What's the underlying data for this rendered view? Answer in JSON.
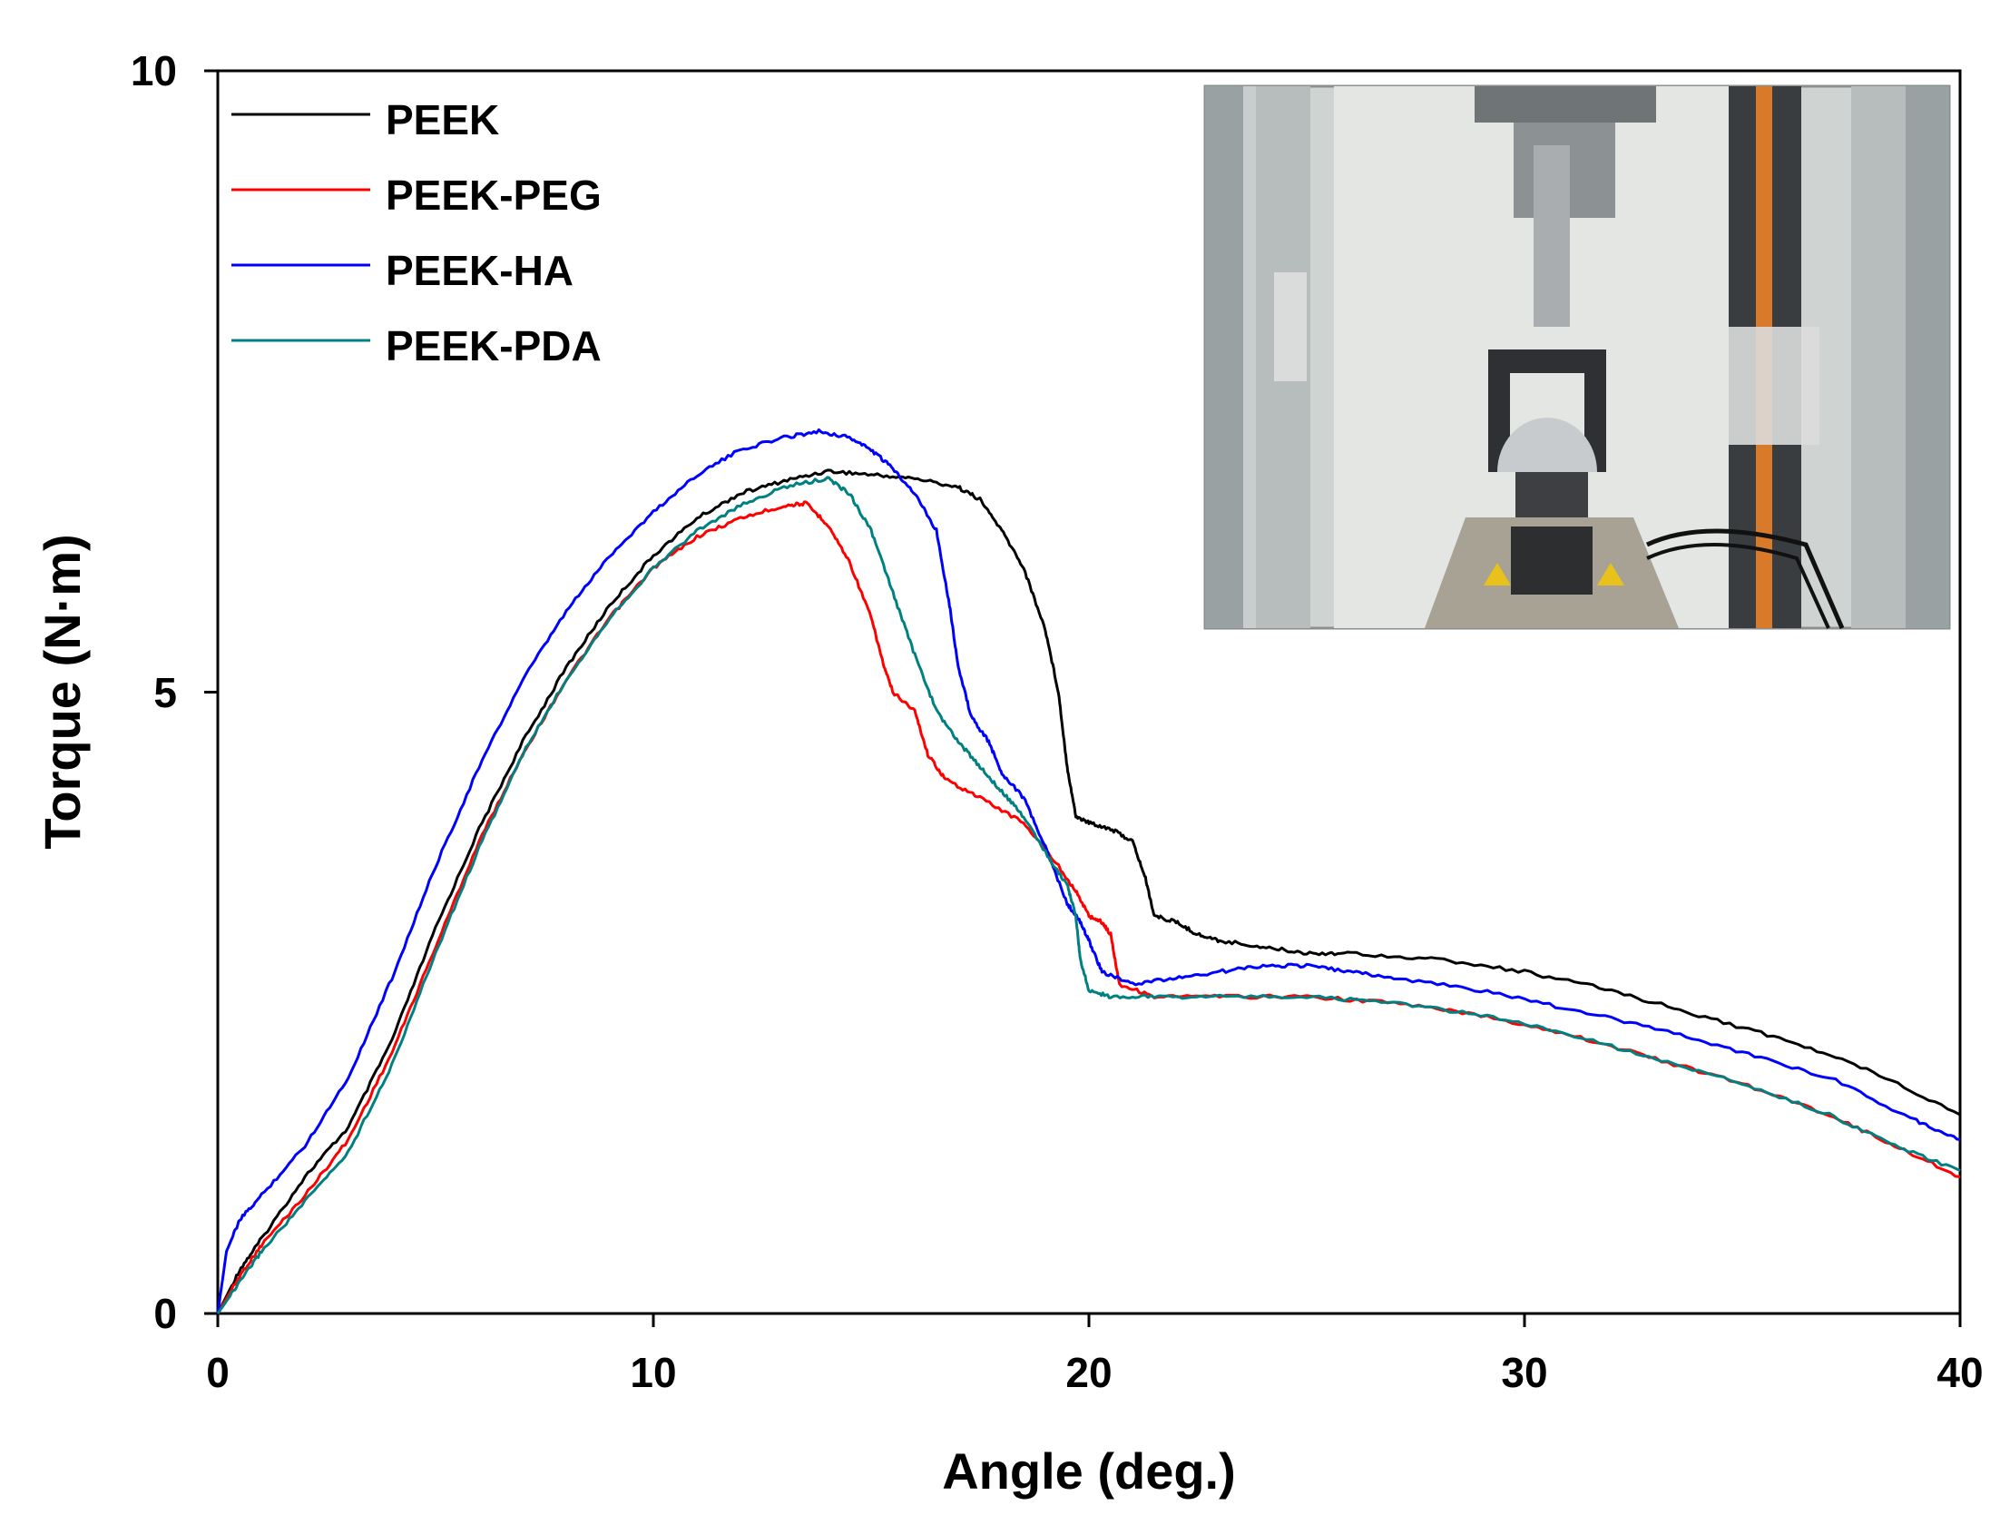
{
  "chart_data": {
    "type": "line",
    "title": "",
    "xlabel": "Angle (deg.)",
    "ylabel": "Torque (N·m)",
    "xlim": [
      0,
      40
    ],
    "ylim": [
      0,
      10
    ],
    "xticks": [
      0,
      10,
      20,
      30,
      40
    ],
    "yticks": [
      0,
      5,
      10
    ],
    "grid": false,
    "legend_position": "top-left",
    "inset": {
      "type": "photo",
      "subject": "test-fixture-photo",
      "placement": "top-right"
    },
    "series": [
      {
        "name": "PEEK",
        "color": "#000000",
        "points": [
          [
            0,
            0
          ],
          [
            0.5,
            0.35
          ],
          [
            1,
            0.6
          ],
          [
            2,
            1.1
          ],
          [
            3,
            1.5
          ],
          [
            4,
            2.2
          ],
          [
            5,
            3.1
          ],
          [
            6,
            3.9
          ],
          [
            7,
            4.6
          ],
          [
            8,
            5.2
          ],
          [
            9,
            5.7
          ],
          [
            10,
            6.1
          ],
          [
            11,
            6.4
          ],
          [
            12,
            6.6
          ],
          [
            13,
            6.7
          ],
          [
            14,
            6.78
          ],
          [
            15,
            6.75
          ],
          [
            16,
            6.72
          ],
          [
            17,
            6.65
          ],
          [
            17.5,
            6.55
          ],
          [
            18,
            6.3
          ],
          [
            18.5,
            6.0
          ],
          [
            19,
            5.5
          ],
          [
            19.3,
            5.0
          ],
          [
            19.5,
            4.4
          ],
          [
            19.7,
            4.0
          ],
          [
            20,
            3.95
          ],
          [
            20.5,
            3.9
          ],
          [
            21,
            3.8
          ],
          [
            21.3,
            3.5
          ],
          [
            21.5,
            3.2
          ],
          [
            22,
            3.15
          ],
          [
            22.5,
            3.05
          ],
          [
            23,
            3.0
          ],
          [
            24,
            2.95
          ],
          [
            25,
            2.9
          ],
          [
            26,
            2.9
          ],
          [
            28,
            2.85
          ],
          [
            30,
            2.75
          ],
          [
            32,
            2.6
          ],
          [
            34,
            2.4
          ],
          [
            36,
            2.2
          ],
          [
            38,
            1.95
          ],
          [
            40,
            1.6
          ]
        ]
      },
      {
        "name": "PEEK-PEG",
        "color": "#ff0000",
        "points": [
          [
            0,
            0
          ],
          [
            0.5,
            0.3
          ],
          [
            1,
            0.55
          ],
          [
            2,
            0.95
          ],
          [
            3,
            1.4
          ],
          [
            4,
            2.1
          ],
          [
            5,
            2.95
          ],
          [
            6,
            3.8
          ],
          [
            7,
            4.5
          ],
          [
            8,
            5.1
          ],
          [
            9,
            5.6
          ],
          [
            10,
            6.0
          ],
          [
            11,
            6.25
          ],
          [
            12,
            6.4
          ],
          [
            13,
            6.5
          ],
          [
            13.5,
            6.52
          ],
          [
            14,
            6.35
          ],
          [
            14.5,
            6.05
          ],
          [
            15,
            5.6
          ],
          [
            15.3,
            5.2
          ],
          [
            15.5,
            5.0
          ],
          [
            16,
            4.85
          ],
          [
            16.3,
            4.5
          ],
          [
            16.7,
            4.3
          ],
          [
            17.5,
            4.15
          ],
          [
            18.5,
            3.95
          ],
          [
            19.3,
            3.6
          ],
          [
            19.7,
            3.4
          ],
          [
            20,
            3.2
          ],
          [
            20.3,
            3.15
          ],
          [
            20.5,
            3.05
          ],
          [
            20.7,
            2.65
          ],
          [
            21.5,
            2.55
          ],
          [
            23,
            2.55
          ],
          [
            25,
            2.55
          ],
          [
            27,
            2.5
          ],
          [
            29,
            2.4
          ],
          [
            31,
            2.25
          ],
          [
            33,
            2.05
          ],
          [
            35,
            1.85
          ],
          [
            37,
            1.6
          ],
          [
            38.5,
            1.35
          ],
          [
            40,
            1.1
          ]
        ]
      },
      {
        "name": "PEEK-HA",
        "color": "#0000ff",
        "points": [
          [
            0,
            0
          ],
          [
            0.2,
            0.5
          ],
          [
            0.5,
            0.75
          ],
          [
            1,
            0.95
          ],
          [
            2,
            1.35
          ],
          [
            3,
            1.9
          ],
          [
            4,
            2.7
          ],
          [
            5,
            3.6
          ],
          [
            6,
            4.4
          ],
          [
            7,
            5.1
          ],
          [
            8,
            5.65
          ],
          [
            9,
            6.1
          ],
          [
            10,
            6.45
          ],
          [
            11,
            6.75
          ],
          [
            12,
            6.95
          ],
          [
            13,
            7.05
          ],
          [
            13.8,
            7.1
          ],
          [
            14.5,
            7.05
          ],
          [
            15,
            6.95
          ],
          [
            15.5,
            6.8
          ],
          [
            16,
            6.6
          ],
          [
            16.5,
            6.3
          ],
          [
            16.8,
            5.7
          ],
          [
            17,
            5.2
          ],
          [
            17.3,
            4.8
          ],
          [
            17.7,
            4.6
          ],
          [
            18,
            4.35
          ],
          [
            18.5,
            4.15
          ],
          [
            19,
            3.75
          ],
          [
            19.5,
            3.3
          ],
          [
            19.8,
            3.15
          ],
          [
            20,
            3.0
          ],
          [
            20.3,
            2.75
          ],
          [
            21,
            2.65
          ],
          [
            22,
            2.7
          ],
          [
            23,
            2.75
          ],
          [
            24,
            2.8
          ],
          [
            25,
            2.8
          ],
          [
            26,
            2.75
          ],
          [
            27,
            2.7
          ],
          [
            29,
            2.6
          ],
          [
            31,
            2.45
          ],
          [
            33,
            2.3
          ],
          [
            35,
            2.1
          ],
          [
            37,
            1.9
          ],
          [
            39,
            1.55
          ],
          [
            40,
            1.4
          ]
        ]
      },
      {
        "name": "PEEK-PDA",
        "color": "#008080",
        "points": [
          [
            0,
            0
          ],
          [
            0.5,
            0.25
          ],
          [
            1,
            0.5
          ],
          [
            2,
            0.9
          ],
          [
            3,
            1.3
          ],
          [
            4,
            2.0
          ],
          [
            5,
            2.9
          ],
          [
            6,
            3.75
          ],
          [
            7,
            4.5
          ],
          [
            8,
            5.1
          ],
          [
            9,
            5.6
          ],
          [
            10,
            6.0
          ],
          [
            11,
            6.3
          ],
          [
            12,
            6.5
          ],
          [
            13,
            6.65
          ],
          [
            14,
            6.72
          ],
          [
            14.5,
            6.6
          ],
          [
            15,
            6.3
          ],
          [
            15.5,
            5.8
          ],
          [
            16,
            5.3
          ],
          [
            16.5,
            4.85
          ],
          [
            17,
            4.6
          ],
          [
            17.5,
            4.4
          ],
          [
            18,
            4.2
          ],
          [
            18.5,
            4.0
          ],
          [
            19.2,
            3.6
          ],
          [
            19.5,
            3.45
          ],
          [
            19.7,
            3.2
          ],
          [
            19.8,
            2.85
          ],
          [
            20,
            2.6
          ],
          [
            20.5,
            2.55
          ],
          [
            21.5,
            2.55
          ],
          [
            23,
            2.55
          ],
          [
            25,
            2.55
          ],
          [
            27,
            2.5
          ],
          [
            29,
            2.4
          ],
          [
            31,
            2.25
          ],
          [
            33,
            2.05
          ],
          [
            35,
            1.85
          ],
          [
            37,
            1.6
          ],
          [
            38.5,
            1.35
          ],
          [
            40,
            1.15
          ]
        ]
      }
    ]
  }
}
